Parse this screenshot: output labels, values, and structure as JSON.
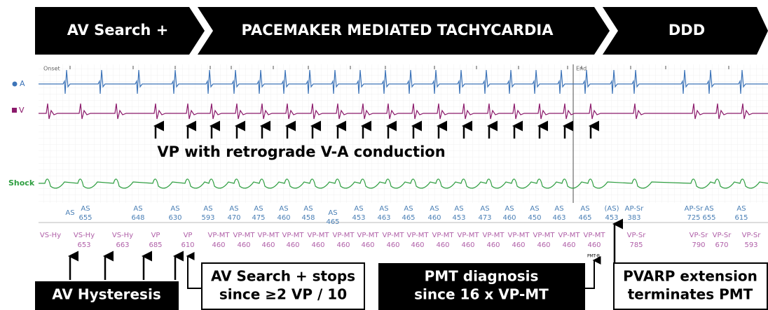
{
  "banner": [
    "AV Search +",
    "PACEMAKER MEDIATED TACHYCARDIA",
    "DDD"
  ],
  "channels": [
    "A",
    "V",
    "Shock"
  ],
  "events": [
    "Onset",
    "End"
  ],
  "annotation": "VP with retrograde V-A conduction",
  "atrial_markers": [
    {
      "label": "AS"
    },
    {
      "label": "AS",
      "interval": 655
    },
    {
      "label": "AS",
      "interval": 648
    },
    {
      "label": "AS",
      "interval": 630
    },
    {
      "label": "AS",
      "interval": 593
    },
    {
      "label": "AS",
      "interval": 470
    },
    {
      "label": "AS",
      "interval": 475
    },
    {
      "label": "AS",
      "interval": 460
    },
    {
      "label": "AS",
      "interval": 458
    },
    {
      "label": "AS",
      "interval": 465
    },
    {
      "label": "AS",
      "interval": 453
    },
    {
      "label": "AS",
      "interval": 463
    },
    {
      "label": "AS",
      "interval": 465
    },
    {
      "label": "AS",
      "interval": 460
    },
    {
      "label": "AS",
      "interval": 453
    },
    {
      "label": "AS",
      "interval": 473
    },
    {
      "label": "AS",
      "interval": 460
    },
    {
      "label": "AS",
      "interval": 450
    },
    {
      "label": "AS",
      "interval": 463
    },
    {
      "label": "AS",
      "interval": 465
    },
    {
      "label": "(AS)",
      "interval": 453
    },
    {
      "label": "AP-Sr",
      "interval": 383
    },
    {
      "label": "AP-Sr",
      "interval": 725
    },
    {
      "label": "AS",
      "interval": 655
    },
    {
      "label": "AS",
      "interval": 615
    }
  ],
  "ventricular_markers": [
    {
      "label": "VS-Hy"
    },
    {
      "label": "VS-Hy",
      "interval": 653
    },
    {
      "label": "VS-Hy",
      "interval": 663
    },
    {
      "label": "VP",
      "interval": 685
    },
    {
      "label": "VP",
      "interval": 610
    },
    {
      "label": "VP-MT",
      "interval": 460
    },
    {
      "label": "VP-MT",
      "interval": 460
    },
    {
      "label": "VP-MT",
      "interval": 460
    },
    {
      "label": "VP-MT",
      "interval": 460
    },
    {
      "label": "VP-MT",
      "interval": 460
    },
    {
      "label": "VP-MT",
      "interval": 460
    },
    {
      "label": "VP-MT",
      "interval": 460
    },
    {
      "label": "VP-MT",
      "interval": 460
    },
    {
      "label": "VP-MT",
      "interval": 460
    },
    {
      "label": "VP-MT",
      "interval": 460
    },
    {
      "label": "VP-MT",
      "interval": 460
    },
    {
      "label": "VP-MT",
      "interval": 460
    },
    {
      "label": "VP-MT",
      "interval": 460
    },
    {
      "label": "VP-MT",
      "interval": 460
    },
    {
      "label": "VP-MT",
      "interval": 460
    },
    {
      "label": "VP-MT",
      "interval": 460
    },
    {
      "label": "VP-Sr",
      "interval": 785
    },
    {
      "label": "VP-Sr",
      "interval": 790
    },
    {
      "label": "VP-Sr",
      "interval": 670
    },
    {
      "label": "VP-Sr",
      "interval": 593
    }
  ],
  "pmt_flag": "PMT-B",
  "callouts": [
    {
      "lines": [
        "AV Hysteresis"
      ]
    },
    {
      "lines": [
        "AV Search + stops",
        "since ≥2 VP / 10"
      ]
    },
    {
      "lines": [
        "PMT diagnosis",
        "since 16 x VP-MT"
      ]
    },
    {
      "lines": [
        "PVARP extension",
        "terminates PMT"
      ]
    }
  ]
}
